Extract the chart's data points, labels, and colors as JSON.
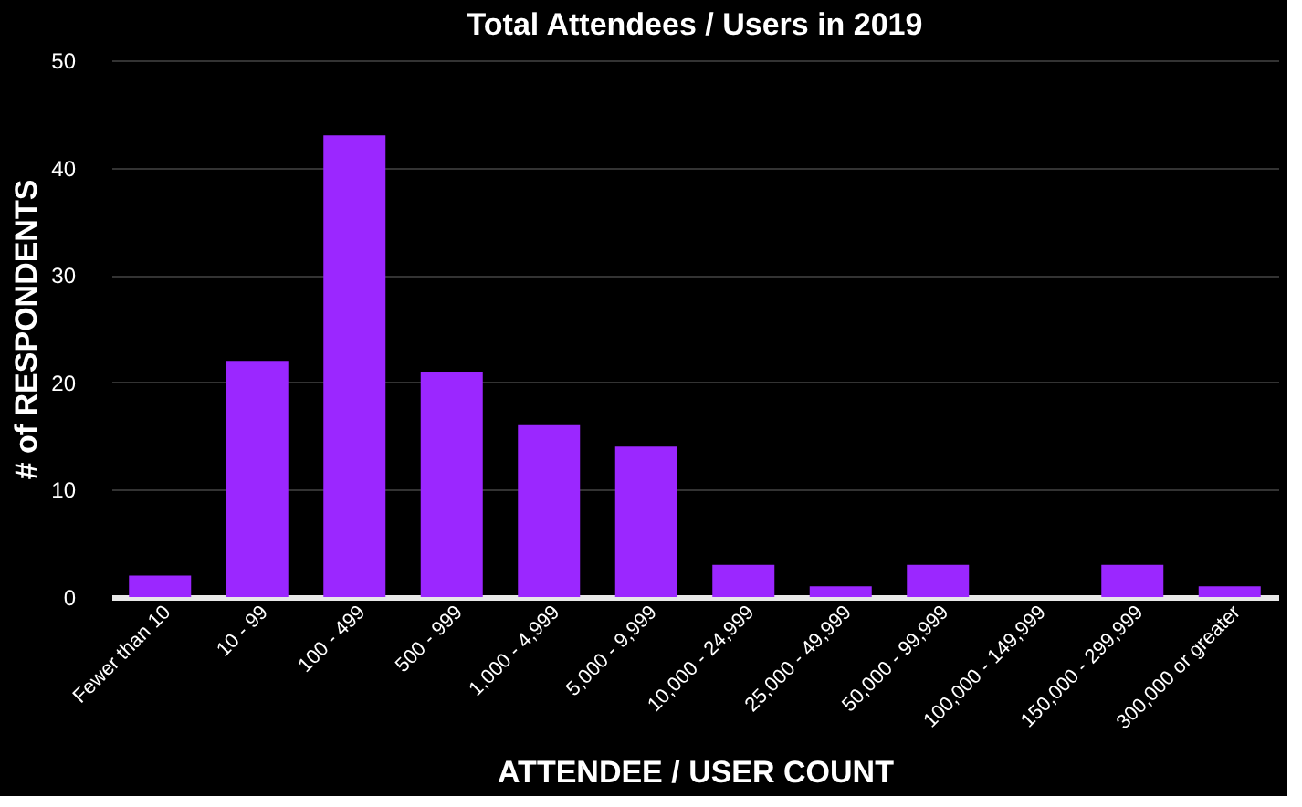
{
  "chart_data": {
    "type": "bar",
    "title": "Total Attendees / Users in 2019",
    "xlabel": "ATTENDEE / USER COUNT",
    "ylabel": "# of RESPONDENTS",
    "categories": [
      "Fewer than 10",
      "10 - 99",
      "100 - 499",
      "500 - 999",
      "1,000 - 4,999",
      "5,000 - 9,999",
      "10,000 - 24,999",
      "25,000 - 49,999",
      "50,000 - 99,999",
      "100,000 - 149,999",
      "150,000 - 299,999",
      "300,000 or greater"
    ],
    "values": [
      2,
      22,
      43,
      21,
      16,
      14,
      3,
      1,
      3,
      0,
      3,
      1
    ],
    "color": "#9b27ff",
    "ylim": [
      0,
      50
    ],
    "yticks": [
      0,
      10,
      20,
      30,
      40,
      50
    ],
    "grid": "y"
  }
}
